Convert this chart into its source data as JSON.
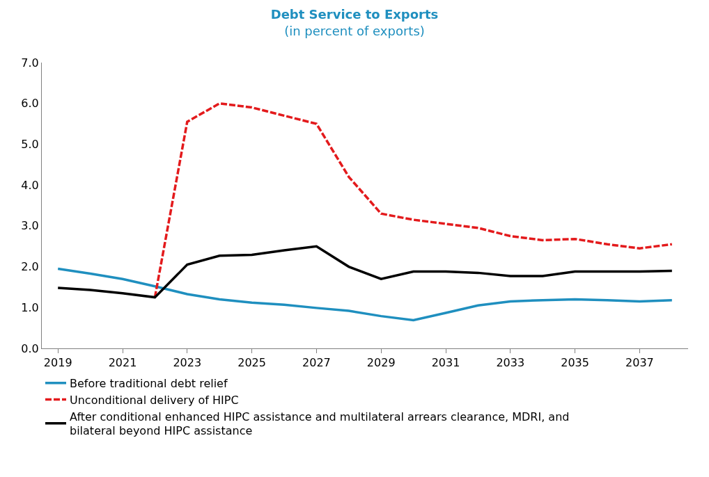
{
  "chart_data": {
    "type": "line",
    "title": "Debt Service to Exports",
    "subtitle": "(in percent of exports)",
    "categories": [
      "2019",
      null,
      "2021",
      null,
      "2023",
      null,
      "2025",
      null,
      "2027",
      null,
      "2029",
      null,
      "2031",
      null,
      "2033",
      null,
      "2035",
      null,
      "2037",
      null
    ],
    "series": [
      {
        "name": "Before traditional debt relief",
        "color": "#1f8fbf",
        "line_style": "solid",
        "values": [
          1.95,
          1.83,
          1.7,
          1.52,
          1.33,
          1.2,
          1.12,
          1.07,
          0.99,
          0.92,
          0.79,
          0.69,
          0.87,
          1.05,
          1.15,
          1.18,
          1.2,
          1.18,
          1.15,
          1.18
        ]
      },
      {
        "name": "Unconditional delivery of HIPC",
        "color": "#e31a1c",
        "line_style": "dashed",
        "values": [
          null,
          null,
          null,
          1.25,
          5.55,
          6.0,
          5.9,
          5.7,
          5.5,
          4.2,
          3.3,
          3.15,
          3.05,
          2.95,
          2.75,
          2.65,
          2.68,
          2.55,
          2.45,
          2.55
        ]
      },
      {
        "name": "After conditional enhanced HIPC assistance and multilateral arrears clearance, MDRI, and bilateral beyond HIPC assistance",
        "color": "#000000",
        "line_style": "solid",
        "values": [
          1.48,
          1.43,
          1.35,
          1.25,
          2.05,
          2.27,
          2.29,
          2.4,
          2.5,
          2.0,
          1.7,
          1.88,
          1.88,
          1.85,
          1.77,
          1.77,
          1.88,
          1.88,
          1.88,
          1.9
        ]
      }
    ],
    "ylim": [
      0,
      7
    ],
    "yticks": [
      {
        "value": 0,
        "label": "0.0"
      },
      {
        "value": 1,
        "label": "1.0"
      },
      {
        "value": 2,
        "label": "2.0"
      },
      {
        "value": 3,
        "label": "3.0"
      },
      {
        "value": 4,
        "label": "4.0"
      },
      {
        "value": 5,
        "label": "5.0"
      },
      {
        "value": 6,
        "label": "6.0"
      },
      {
        "value": 7,
        "label": "7.0"
      }
    ],
    "legend": "bottom",
    "marker": "none"
  }
}
